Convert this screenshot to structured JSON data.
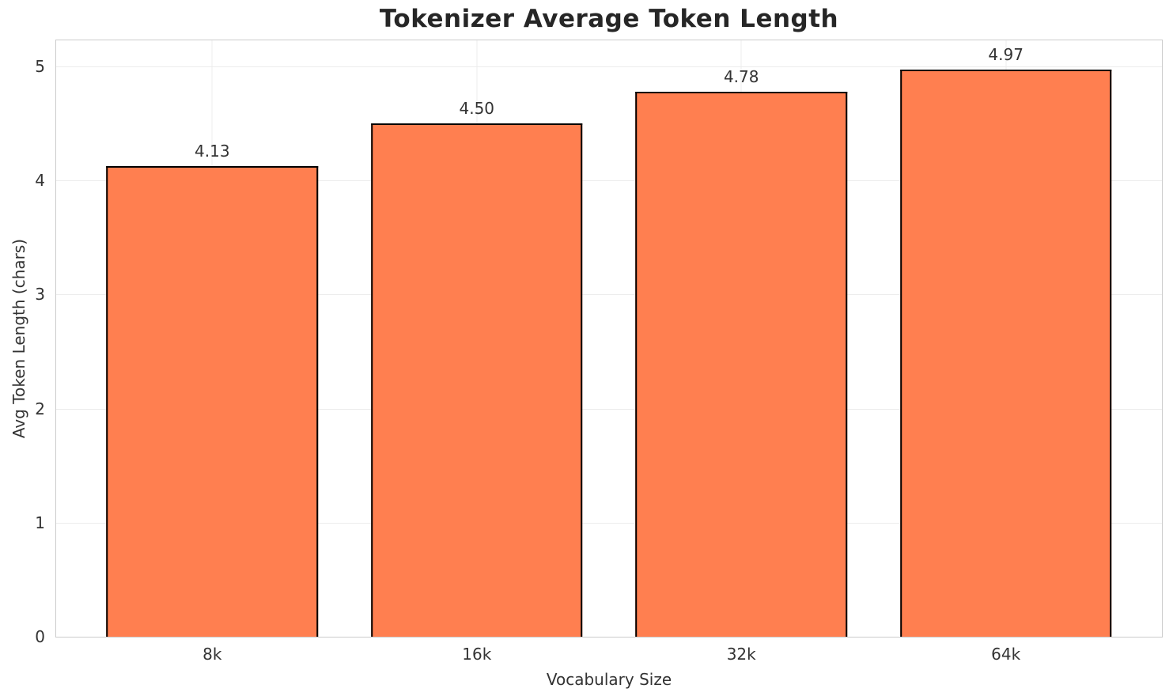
{
  "title": "Tokenizer Average Token Length",
  "chart_data": {
    "type": "bar",
    "title": "Tokenizer Average Token Length",
    "xlabel": "Vocabulary Size",
    "ylabel": "Avg Token Length (chars)",
    "categories": [
      "8k",
      "16k",
      "32k",
      "64k"
    ],
    "values": [
      4.13,
      4.5,
      4.78,
      4.97
    ],
    "value_labels": [
      "4.13",
      "4.50",
      "4.78",
      "4.97"
    ],
    "yticks": [
      0,
      1,
      2,
      3,
      4,
      5
    ],
    "ylim": [
      0,
      5.23
    ],
    "grid": true,
    "legend_position": "none",
    "bar_color": "#ff7f50",
    "bar_edge_color": "#000000",
    "grid_color": "#ececec",
    "spine_color": "#cccccc",
    "text_color": "#333333",
    "title_color": "#262626",
    "background_color": "#ffffff",
    "x_pad_units": 0.59,
    "bar_width_units": 0.8
  }
}
